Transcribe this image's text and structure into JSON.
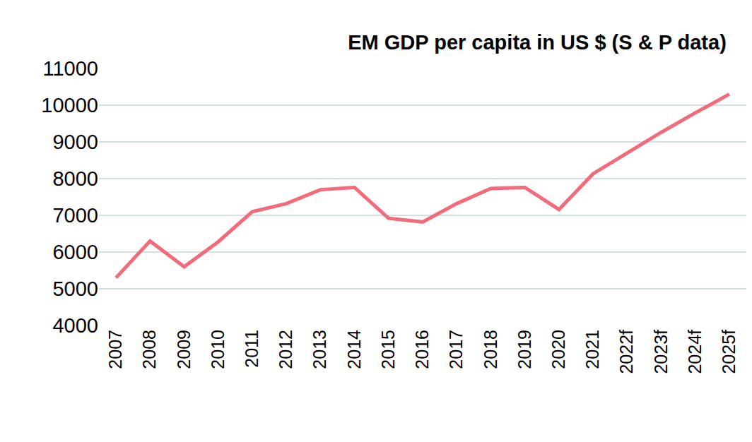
{
  "chart_data": {
    "type": "line",
    "title": "EM GDP per capita in US $ (S & P data)",
    "categories": [
      "2007",
      "2008",
      "2009",
      "2010",
      "2011",
      "2012",
      "2013",
      "2014",
      "2015",
      "2016",
      "2017",
      "2018",
      "2019",
      "2020",
      "2021",
      "2022f",
      "2023f",
      "2024f",
      "2025f"
    ],
    "values": [
      5300,
      6300,
      5600,
      6280,
      7100,
      7320,
      7700,
      7760,
      6920,
      6820,
      7320,
      7730,
      7760,
      7160,
      8130,
      8700,
      9260,
      9790,
      10300
    ],
    "color": "#f26b7b",
    "ylim": [
      4000,
      11000
    ],
    "yticks": [
      4000,
      5000,
      6000,
      7000,
      8000,
      9000,
      10000,
      11000
    ],
    "grid": true
  }
}
